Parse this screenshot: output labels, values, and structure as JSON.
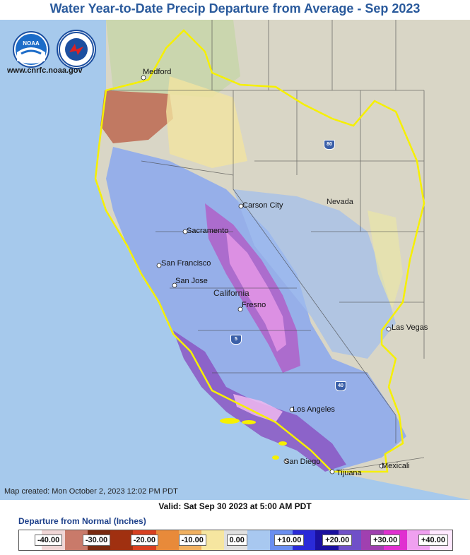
{
  "title": "Water Year-to-Date Precip Departure from Average - Sep 2023",
  "site_url": "www.cnrfc.noaa.gov",
  "map_created": "Map created: Mon October 2, 2023 12:02 PM PDT",
  "valid": "Valid: Sat Sep 30 2023 at 5:00 AM PDT",
  "legend": {
    "title": "Departure from Normal (Inches)",
    "ticks": [
      "-40.00",
      "-30.00",
      "-20.00",
      "-10.00",
      "0.00",
      "+10.00",
      "+20.00",
      "+30.00",
      "+40.00"
    ],
    "colors": [
      "#ffffff",
      "#f0d6d6",
      "#c97a6a",
      "#7a2a10",
      "#a03010",
      "#d84020",
      "#e88a3a",
      "#f0b060",
      "#f6e6a0",
      "#e0e0e0",
      "#a8c8f0",
      "#6a8ef0",
      "#2a2ad8",
      "#1a10a0",
      "#7050c8",
      "#a040b0",
      "#e030d0",
      "#f0a0f0",
      "#ffe8ff"
    ]
  },
  "cities": [
    "Medford",
    "Carson City",
    "Sacramento",
    "San Francisco",
    "San Jose",
    "Fresno",
    "Las Vegas",
    "Los Angeles",
    "San Diego",
    "Tijuana",
    "Mexicali"
  ],
  "states": [
    "Nevada",
    "California"
  ],
  "highways": [
    "80",
    "5",
    "40"
  ],
  "colors": {
    "ocean": "#a6c9ec",
    "land": "#d8d4c4",
    "rfc_boundary": "#f6f000",
    "title": "#2a5a9c"
  }
}
